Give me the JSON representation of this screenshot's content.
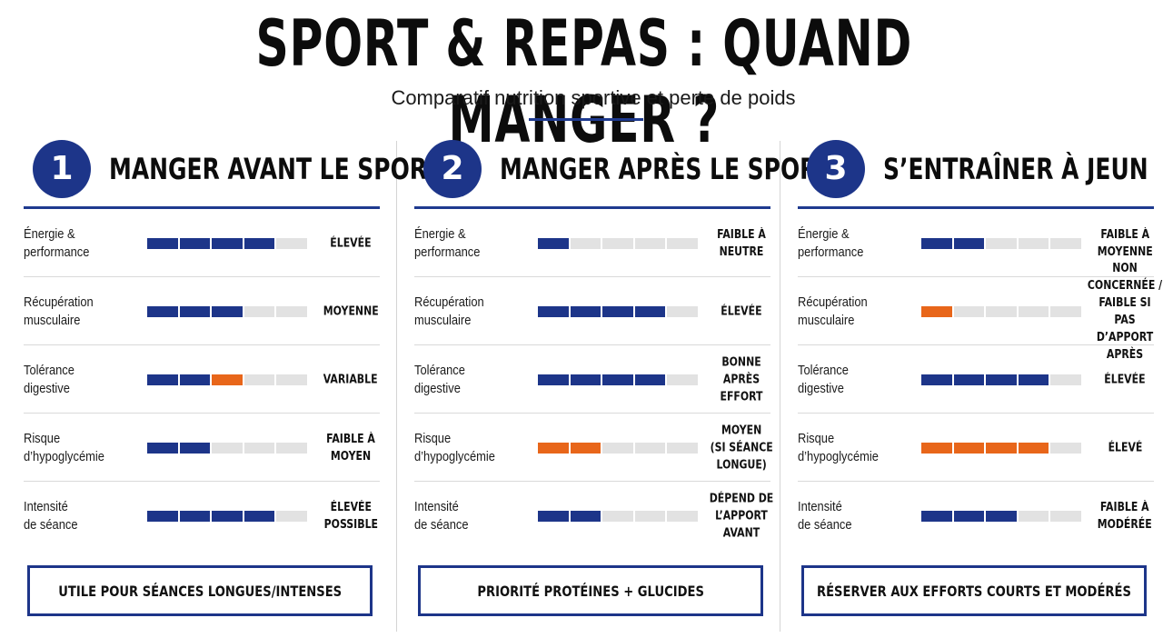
{
  "title": "SPORT & REPAS : QUAND MANGER ?",
  "subtitle": "Comparatif nutrition sportive et perte de poids",
  "colors": {
    "navy": "#1d3589",
    "orange": "#e8661a",
    "empty": "#e2e2e2"
  },
  "columns": [
    {
      "number": "1",
      "title": "MANGER AVANT LE SPORT",
      "rows": [
        {
          "label": "Énergie & performance",
          "value": "ÉLEVÉE",
          "level": 4,
          "color": "blue"
        },
        {
          "label": "Récupération\nmusculaire",
          "value": "MOYENNE",
          "level": 3,
          "color": "blue"
        },
        {
          "label": "Tolérance\ndigestive",
          "value": "VARIABLE",
          "level": 3,
          "color": "mixed"
        },
        {
          "label": "Risque\nd’hypoglycémie",
          "value": "FAIBLE À\nMOYEN",
          "level": 2,
          "color": "blue"
        },
        {
          "label": "Intensité\nde séance",
          "value": "ÉLEVÉE\nPOSSIBLE",
          "level": 4,
          "color": "blue"
        }
      ],
      "footer": "UTILE POUR SÉANCES LONGUES/INTENSES"
    },
    {
      "number": "2",
      "title": "MANGER APRÈS LE SPORT",
      "rows": [
        {
          "label": "Énergie & performance",
          "value": "FAIBLE À\nNEUTRE",
          "level": 1,
          "color": "blue"
        },
        {
          "label": "Récupération\nmusculaire",
          "value": "ÉLEVÉE",
          "level": 4,
          "color": "blue"
        },
        {
          "label": "Tolérance\ndigestive",
          "value": "BONNE\nAPRÈS EFFORT",
          "level": 4,
          "color": "blue"
        },
        {
          "label": "Risque\nd’hypoglycémie",
          "value": "MOYEN\n(SI SÉANCE\nLONGUE)",
          "level": 2,
          "color": "orange"
        },
        {
          "label": "Intensité\nde séance",
          "value": "DÉPEND DE\nL’APPORT AVANT",
          "level": 2,
          "color": "blue"
        }
      ],
      "footer": "PRIORITÉ PROTÉINES + GLUCIDES"
    },
    {
      "number": "3",
      "title": "S’ENTRAÎNER À JEUN",
      "rows": [
        {
          "label": "Énergie & performance",
          "value": "FAIBLE À\nMOYENNE",
          "level": 2,
          "color": "blue"
        },
        {
          "label": "Récupération\nmusculaire",
          "value": "NON CONCERNÉE /\nFAIBLE SI PAS\nD’APPORT APRÈS",
          "level": 1,
          "color": "orange"
        },
        {
          "label": "Tolérance\ndigestive",
          "value": "ÉLEVÉE",
          "level": 4,
          "color": "blue"
        },
        {
          "label": "Risque\nd’hypoglycémie",
          "value": "ÉLEVÉ",
          "level": 4,
          "color": "orange"
        },
        {
          "label": "Intensité\nde séance",
          "value": "FAIBLE À\nMODÉRÉE",
          "level": 3,
          "color": "blue"
        }
      ],
      "footer": "RÉSERVER AUX EFFORTS COURTS ET MODÉRÉS"
    }
  ]
}
